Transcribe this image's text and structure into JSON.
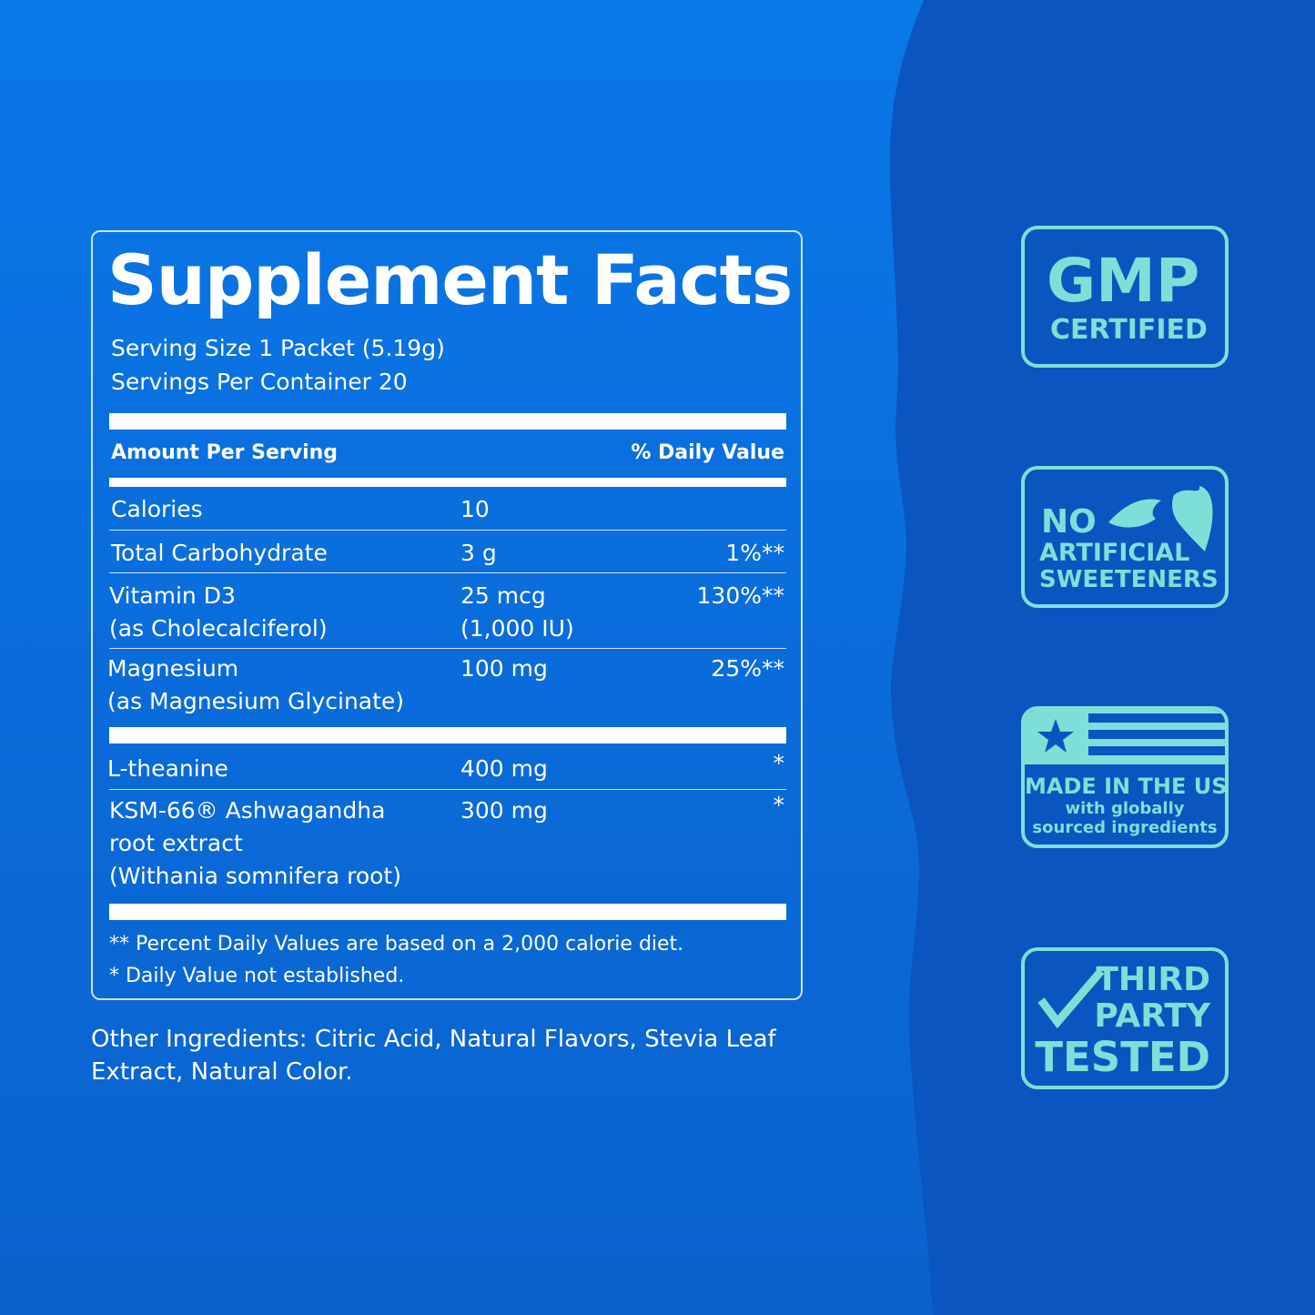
{
  "colors": {
    "background": "#0a6fe0",
    "wave": "#0a55c0",
    "badge": "#7de0d6",
    "text": "#ffffff"
  },
  "facts": {
    "title": "Supplement Facts",
    "serving_size": "Serving Size 1 Packet (5.19g)",
    "servings_per_container": "Servings Per Container 20",
    "header_amount": "Amount Per Serving",
    "header_dv": "% Daily Value",
    "rows": [
      {
        "name": "Calories",
        "amount": "10",
        "dv": ""
      },
      {
        "name": "Total Carbohydrate",
        "amount": "3 g",
        "dv": "1%**"
      },
      {
        "name": "Vitamin D3",
        "name2": "(as Cholecalciferol)",
        "amount": "25 mcg",
        "amount2": "(1,000 IU)",
        "dv": "130%**"
      },
      {
        "name": "Magnesium",
        "name2": "(as Magnesium Glycinate)",
        "amount": "100 mg",
        "dv": "25%**"
      },
      {
        "name": "L-theanine",
        "amount": "400 mg",
        "dv": "*"
      },
      {
        "name": "KSM-66® Ashwagandha",
        "name2": "root extract",
        "name3": "(Withania somnifera root)",
        "amount": "300 mg",
        "dv": "*"
      }
    ],
    "footnote1": "** Percent Daily Values are based on a 2,000 calorie diet.",
    "footnote2": "* Daily Value not established."
  },
  "other_ingredients": "Other Ingredients: Citric Acid, Natural Flavors, Stevia Leaf Extract, Natural Color.",
  "badges": {
    "gmp": {
      "line1": "GMP",
      "line2": "CERTIFIED"
    },
    "sweeteners": {
      "line1": "NO",
      "line2": "ARTIFICIAL",
      "line3": "SWEETENERS",
      "icon": "leaves-icon"
    },
    "usa": {
      "line1": "MADE IN THE USA",
      "line2": "with globally",
      "line3": "sourced ingredients",
      "icon": "flag-icon"
    },
    "tested": {
      "line1": "THIRD",
      "line2": "PARTY",
      "line3": "TESTED",
      "icon": "checkmark-icon"
    }
  }
}
